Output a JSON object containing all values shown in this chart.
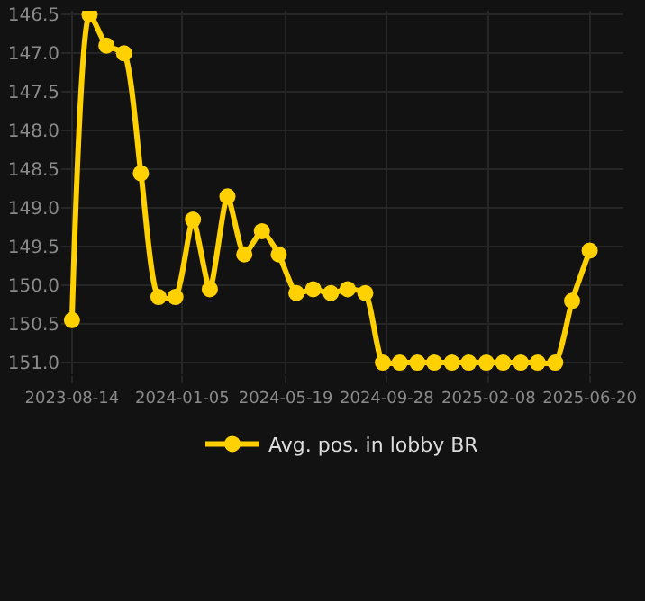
{
  "chart_data": {
    "type": "line",
    "x": [
      "2023-08-14",
      "2023-09-06",
      "2023-09-28",
      "2023-10-21",
      "2023-11-12",
      "2023-12-05",
      "2023-12-27",
      "2024-01-19",
      "2024-02-10",
      "2024-03-04",
      "2024-03-26",
      "2024-04-18",
      "2024-05-10",
      "2024-06-02",
      "2024-06-24",
      "2024-07-17",
      "2024-08-08",
      "2024-08-31",
      "2024-09-23",
      "2024-10-15",
      "2024-11-07",
      "2024-11-29",
      "2024-12-22",
      "2025-01-13",
      "2025-02-05",
      "2025-02-27",
      "2025-03-22",
      "2025-04-13",
      "2025-05-06",
      "2025-05-28",
      "2025-06-20"
    ],
    "series": [
      {
        "name": "Avg. pos. in lobby BR",
        "color": "#ffd100",
        "values": [
          150.45,
          146.5,
          146.9,
          147.0,
          148.55,
          150.15,
          150.15,
          149.15,
          150.05,
          148.85,
          149.6,
          149.3,
          149.6,
          150.1,
          150.05,
          150.1,
          150.05,
          150.1,
          151.0,
          151.0,
          151.0,
          151.0,
          151.0,
          151.0,
          151.0,
          151.0,
          151.0,
          151.0,
          151.0,
          150.2,
          149.55
        ]
      }
    ],
    "ylim": [
      151.15,
      146.45
    ],
    "yticks": [
      {
        "value": 146.5,
        "label": "146.5"
      },
      {
        "value": 147,
        "label": "147.0"
      },
      {
        "value": 147.5,
        "label": "147.5"
      },
      {
        "value": 148,
        "label": "148.0"
      },
      {
        "value": 148.5,
        "label": "148.5"
      },
      {
        "value": 149,
        "label": "149.0"
      },
      {
        "value": 149.5,
        "label": "149.5"
      },
      {
        "value": 150,
        "label": "150.0"
      },
      {
        "value": 150.5,
        "label": "150.5"
      },
      {
        "value": 151,
        "label": "151.0"
      }
    ],
    "xlim": [
      "2023-07-31",
      "2025-08-03"
    ],
    "xticks": [
      "2023-08-14",
      "2024-01-05",
      "2024-05-19",
      "2024-09-28",
      "2025-02-08",
      "2025-06-20"
    ],
    "grid": true,
    "legend": "bottom",
    "marker": "circle",
    "line_style": "solid"
  }
}
